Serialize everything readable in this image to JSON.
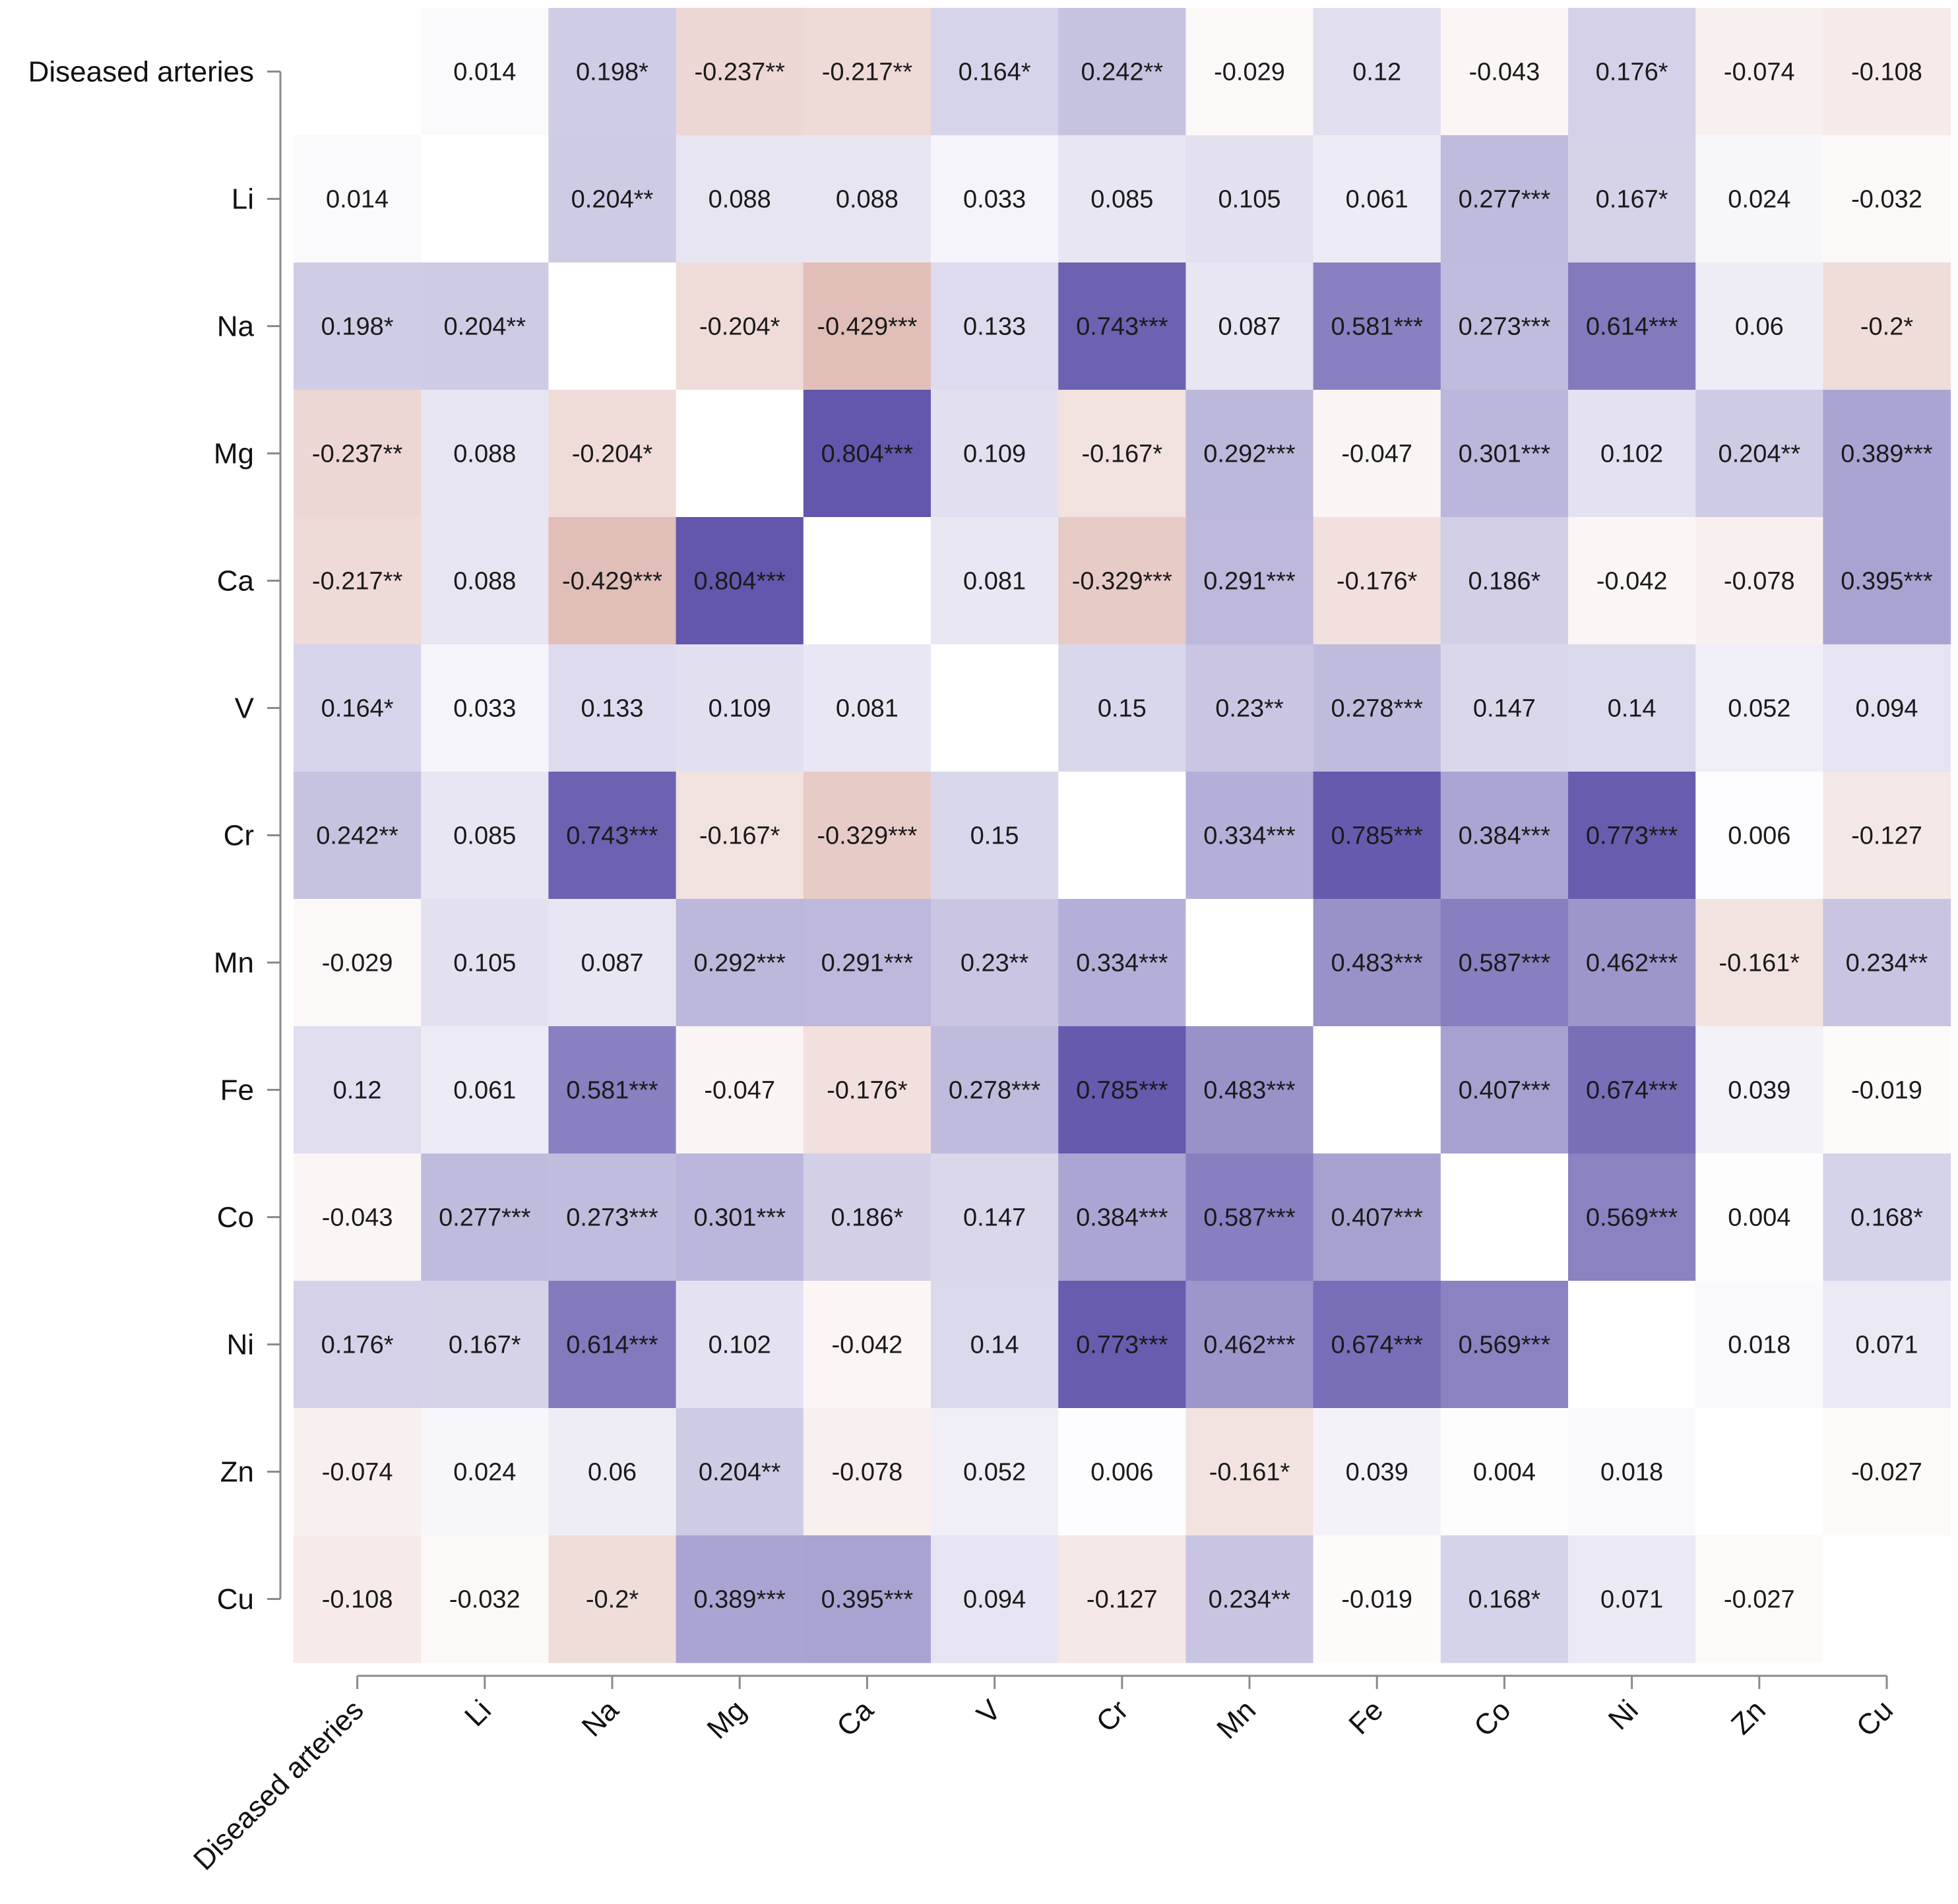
{
  "chart_data": {
    "type": "heatmap",
    "title": "",
    "xlabel": "",
    "ylabel": "",
    "variables": [
      "Diseased arteries",
      "Li",
      "Na",
      "Mg",
      "Ca",
      "V",
      "Cr",
      "Mn",
      "Fe",
      "Co",
      "Ni",
      "Zn",
      "Cu"
    ],
    "matrix": [
      [
        null,
        0.014,
        0.198,
        -0.237,
        -0.217,
        0.164,
        0.242,
        -0.029,
        0.12,
        -0.043,
        0.176,
        -0.074,
        -0.108
      ],
      [
        0.014,
        null,
        0.204,
        0.088,
        0.088,
        0.033,
        0.085,
        0.105,
        0.061,
        0.277,
        0.167,
        0.024,
        -0.032
      ],
      [
        0.198,
        0.204,
        null,
        -0.204,
        -0.429,
        0.133,
        0.743,
        0.087,
        0.581,
        0.273,
        0.614,
        0.06,
        -0.2
      ],
      [
        -0.237,
        0.088,
        -0.204,
        null,
        0.804,
        0.109,
        -0.167,
        0.292,
        -0.047,
        0.301,
        0.102,
        0.204,
        0.389
      ],
      [
        -0.217,
        0.088,
        -0.429,
        0.804,
        null,
        0.081,
        -0.329,
        0.291,
        -0.176,
        0.186,
        -0.042,
        -0.078,
        0.395
      ],
      [
        0.164,
        0.033,
        0.133,
        0.109,
        0.081,
        null,
        0.15,
        0.23,
        0.278,
        0.147,
        0.14,
        0.052,
        0.094
      ],
      [
        0.242,
        0.085,
        0.743,
        -0.167,
        -0.329,
        0.15,
        null,
        0.334,
        0.785,
        0.384,
        0.773,
        0.006,
        -0.127
      ],
      [
        -0.029,
        0.105,
        0.087,
        0.292,
        0.291,
        0.23,
        0.334,
        null,
        0.483,
        0.587,
        0.462,
        -0.161,
        0.234
      ],
      [
        0.12,
        0.061,
        0.581,
        -0.047,
        -0.176,
        0.278,
        0.785,
        0.483,
        null,
        0.407,
        0.674,
        0.039,
        -0.019
      ],
      [
        -0.043,
        0.277,
        0.273,
        0.301,
        0.186,
        0.147,
        0.384,
        0.587,
        0.407,
        null,
        0.569,
        0.004,
        0.168
      ],
      [
        0.176,
        0.167,
        0.614,
        0.102,
        -0.042,
        0.14,
        0.773,
        0.462,
        0.674,
        0.569,
        null,
        0.018,
        0.071
      ],
      [
        -0.074,
        0.024,
        0.06,
        0.204,
        -0.078,
        0.052,
        0.006,
        -0.161,
        0.039,
        0.004,
        0.018,
        null,
        -0.027
      ],
      [
        -0.108,
        -0.032,
        -0.2,
        0.389,
        0.395,
        0.094,
        -0.127,
        0.234,
        -0.019,
        0.168,
        0.071,
        -0.027,
        null
      ]
    ],
    "labels": [
      [
        "",
        "0.014",
        "0.198*",
        "-0.237**",
        "-0.217**",
        "0.164*",
        "0.242**",
        "-0.029",
        "0.12",
        "-0.043",
        "0.176*",
        "-0.074",
        "-0.108"
      ],
      [
        "0.014",
        "",
        "0.204**",
        "0.088",
        "0.088",
        "0.033",
        "0.085",
        "0.105",
        "0.061",
        "0.277***",
        "0.167*",
        "0.024",
        "-0.032"
      ],
      [
        "0.198*",
        "0.204**",
        "",
        "-0.204*",
        "-0.429***",
        "0.133",
        "0.743***",
        "0.087",
        "0.581***",
        "0.273***",
        "0.614***",
        "0.06",
        "-0.2*"
      ],
      [
        "-0.237**",
        "0.088",
        "-0.204*",
        "",
        "0.804***",
        "0.109",
        "-0.167*",
        "0.292***",
        "-0.047",
        "0.301***",
        "0.102",
        "0.204**",
        "0.389***"
      ],
      [
        "-0.217**",
        "0.088",
        "-0.429***",
        "0.804***",
        "",
        "0.081",
        "-0.329***",
        "0.291***",
        "-0.176*",
        "0.186*",
        "-0.042",
        "-0.078",
        "0.395***"
      ],
      [
        "0.164*",
        "0.033",
        "0.133",
        "0.109",
        "0.081",
        "",
        "0.15",
        "0.23**",
        "0.278***",
        "0.147",
        "0.14",
        "0.052",
        "0.094"
      ],
      [
        "0.242**",
        "0.085",
        "0.743***",
        "-0.167*",
        "-0.329***",
        "0.15",
        "",
        "0.334***",
        "0.785***",
        "0.384***",
        "0.773***",
        "0.006",
        "-0.127"
      ],
      [
        "-0.029",
        "0.105",
        "0.087",
        "0.292***",
        "0.291***",
        "0.23**",
        "0.334***",
        "",
        "0.483***",
        "0.587***",
        "0.462***",
        "-0.161*",
        "0.234**"
      ],
      [
        "0.12",
        "0.061",
        "0.581***",
        "-0.047",
        "-0.176*",
        "0.278***",
        "0.785***",
        "0.483***",
        "",
        "0.407***",
        "0.674***",
        "0.039",
        "-0.019"
      ],
      [
        "-0.043",
        "0.277***",
        "0.273***",
        "0.301***",
        "0.186*",
        "0.147",
        "0.384***",
        "0.587***",
        "0.407***",
        "",
        "0.569***",
        "0.004",
        "0.168*"
      ],
      [
        "0.176*",
        "0.167*",
        "0.614***",
        "0.102",
        "-0.042",
        "0.14",
        "0.773***",
        "0.462***",
        "0.674***",
        "0.569***",
        "",
        "0.018",
        "0.071"
      ],
      [
        "-0.074",
        "0.024",
        "0.06",
        "0.204**",
        "-0.078",
        "0.052",
        "0.006",
        "-0.161*",
        "0.039",
        "0.004",
        "0.018",
        "",
        "-0.027"
      ],
      [
        "-0.108",
        "-0.032",
        "-0.2*",
        "0.389***",
        "0.395***",
        "0.094",
        "-0.127",
        "0.234**",
        "-0.019",
        "0.168*",
        "0.071",
        "-0.027",
        ""
      ]
    ],
    "color_scale": {
      "negative": "#c98a80",
      "zero": "#ffffff",
      "positive": "#5a4fa8",
      "range": [
        -0.85,
        0.85
      ]
    }
  }
}
